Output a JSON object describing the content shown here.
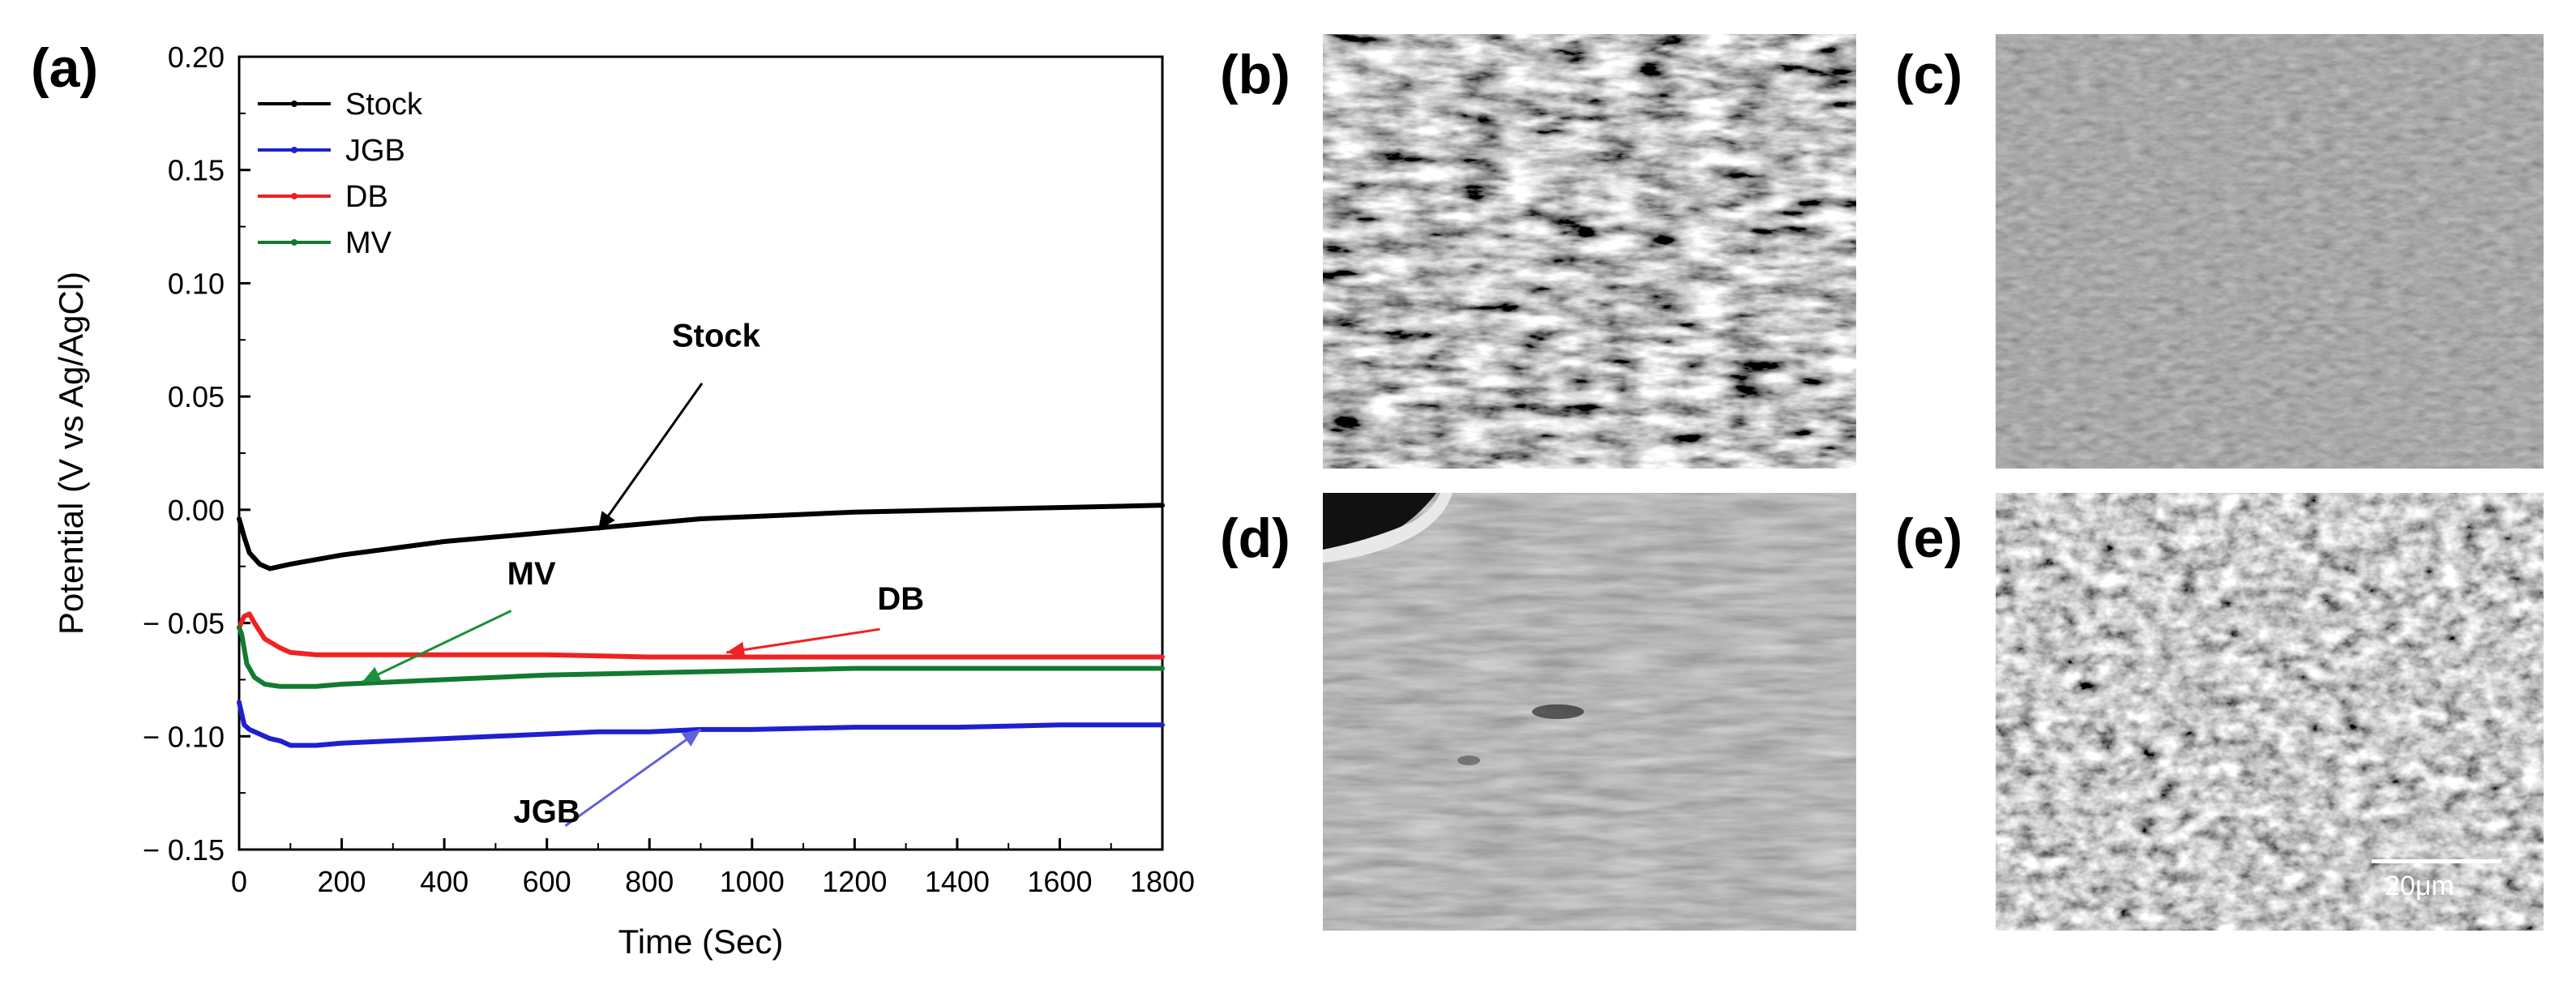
{
  "chart_data": {
    "type": "line",
    "panel_label": "(a)",
    "xlabel": "Time (Sec)",
    "ylabel": "Potential (V vs Ag/AgCl)",
    "xlim": [
      0,
      1800
    ],
    "ylim": [
      -0.15,
      0.2
    ],
    "xticks": [
      "0",
      "200",
      "400",
      "600",
      "800",
      "1000",
      "1200",
      "1400",
      "1600",
      "1800"
    ],
    "yticks": [
      "0.20",
      "0.15",
      "0.10",
      "0.05",
      "0.00",
      "− 0.05",
      "− 0.10",
      "− 0.15"
    ],
    "legend_position": "top-left",
    "series": [
      {
        "name": "Stock",
        "color": "#000000",
        "x": [
          0,
          10,
          20,
          40,
          60,
          80,
          100,
          150,
          200,
          300,
          400,
          500,
          600,
          700,
          800,
          900,
          1000,
          1200,
          1400,
          1600,
          1800
        ],
        "y": [
          -0.004,
          -0.012,
          -0.019,
          -0.024,
          -0.026,
          -0.025,
          -0.024,
          -0.022,
          -0.02,
          -0.017,
          -0.014,
          -0.012,
          -0.01,
          -0.008,
          -0.006,
          -0.004,
          -0.003,
          -0.001,
          0.0,
          0.001,
          0.002
        ]
      },
      {
        "name": "JGB",
        "color": "#1f1fd0",
        "x": [
          0,
          10,
          20,
          40,
          60,
          80,
          100,
          150,
          200,
          300,
          400,
          500,
          600,
          700,
          800,
          900,
          1000,
          1200,
          1400,
          1600,
          1800
        ],
        "y": [
          -0.085,
          -0.095,
          -0.097,
          -0.099,
          -0.101,
          -0.102,
          -0.104,
          -0.104,
          -0.103,
          -0.102,
          -0.101,
          -0.1,
          -0.099,
          -0.098,
          -0.098,
          -0.097,
          -0.097,
          -0.096,
          -0.096,
          -0.095,
          -0.095
        ]
      },
      {
        "name": "DB",
        "color": "#ee2222",
        "x": [
          0,
          10,
          20,
          30,
          50,
          80,
          100,
          150,
          200,
          300,
          400,
          600,
          800,
          1000,
          1200,
          1400,
          1600,
          1800
        ],
        "y": [
          -0.052,
          -0.047,
          -0.046,
          -0.05,
          -0.057,
          -0.061,
          -0.063,
          -0.064,
          -0.064,
          -0.064,
          -0.064,
          -0.064,
          -0.065,
          -0.065,
          -0.065,
          -0.065,
          -0.065,
          -0.065
        ]
      },
      {
        "name": "MV",
        "color": "#137a30",
        "x": [
          0,
          5,
          15,
          30,
          50,
          80,
          100,
          150,
          200,
          300,
          400,
          500,
          600,
          800,
          1000,
          1200,
          1400,
          1600,
          1800
        ],
        "y": [
          -0.052,
          -0.055,
          -0.068,
          -0.074,
          -0.077,
          -0.078,
          -0.078,
          -0.078,
          -0.077,
          -0.076,
          -0.075,
          -0.074,
          -0.073,
          -0.072,
          -0.071,
          -0.07,
          -0.07,
          -0.07,
          -0.07
        ]
      }
    ],
    "annotations": [
      {
        "text": "Stock",
        "text_x": 930,
        "text_y": 0.072,
        "arrow_x": 700,
        "arrow_y": -0.009,
        "color": "#000000"
      },
      {
        "text": "MV",
        "text_x": 570,
        "text_y": -0.033,
        "arrow_x": 240,
        "arrow_y": -0.076,
        "color": "#1a8f3c"
      },
      {
        "text": "DB",
        "text_x": 1290,
        "text_y": -0.044,
        "arrow_x": 950,
        "arrow_y": -0.063,
        "color": "#ee2222"
      },
      {
        "text": "JGB",
        "text_x": 600,
        "text_y": -0.138,
        "arrow_x": 900,
        "arrow_y": -0.097,
        "color": "#6060d8"
      }
    ]
  },
  "micrographs": [
    {
      "label": "(b)",
      "texture": "rough-dark-pitted"
    },
    {
      "label": "(c)",
      "texture": "smooth-gray"
    },
    {
      "label": "(d)",
      "texture": "smooth-streaked"
    },
    {
      "label": "(e)",
      "texture": "fine-pitted"
    }
  ],
  "scale_bar": {
    "label": "20μm"
  }
}
